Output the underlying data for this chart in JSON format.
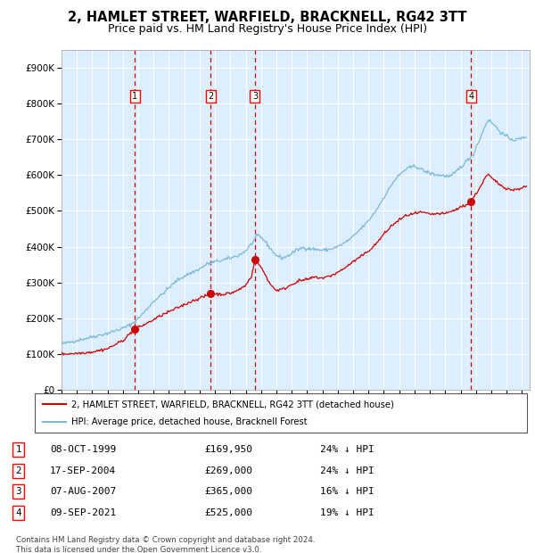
{
  "title": "2, HAMLET STREET, WARFIELD, BRACKNELL, RG42 3TT",
  "subtitle": "Price paid vs. HM Land Registry's House Price Index (HPI)",
  "title_fontsize": 10.5,
  "subtitle_fontsize": 9.0,
  "legend_line1": "2, HAMLET STREET, WARFIELD, BRACKNELL, RG42 3TT (detached house)",
  "legend_line2": "HPI: Average price, detached house, Bracknell Forest",
  "footer1": "Contains HM Land Registry data © Crown copyright and database right 2024.",
  "footer2": "This data is licensed under the Open Government Licence v3.0.",
  "sales": [
    {
      "label": "1",
      "date": "08-OCT-1999",
      "price": 169950,
      "year": 1999.77,
      "pct": "24%",
      "dir": "↓"
    },
    {
      "label": "2",
      "date": "17-SEP-2004",
      "price": 269000,
      "year": 2004.71,
      "pct": "24%",
      "dir": "↓"
    },
    {
      "label": "3",
      "date": "07-AUG-2007",
      "price": 365000,
      "year": 2007.6,
      "pct": "16%",
      "dir": "↓"
    },
    {
      "label": "4",
      "date": "09-SEP-2021",
      "price": 525000,
      "year": 2021.69,
      "pct": "19%",
      "dir": "↓"
    }
  ],
  "hpi_color": "#7ab8d9",
  "sale_color": "#cc0000",
  "vline_color": "#cc0000",
  "plot_bg_color": "#ddeeff",
  "ylim": [
    0,
    950000
  ],
  "xlim_start": 1995.0,
  "xlim_end": 2025.5,
  "yticks": [
    0,
    100000,
    200000,
    300000,
    400000,
    500000,
    600000,
    700000,
    800000,
    900000
  ],
  "ytick_labels": [
    "£0",
    "£100K",
    "£200K",
    "£300K",
    "£400K",
    "£500K",
    "£600K",
    "£700K",
    "£800K",
    "£900K"
  ],
  "xticks": [
    1995,
    1996,
    1997,
    1998,
    1999,
    2000,
    2001,
    2002,
    2003,
    2004,
    2005,
    2006,
    2007,
    2008,
    2009,
    2010,
    2011,
    2012,
    2013,
    2014,
    2015,
    2016,
    2017,
    2018,
    2019,
    2020,
    2021,
    2022,
    2023,
    2024,
    2025
  ]
}
